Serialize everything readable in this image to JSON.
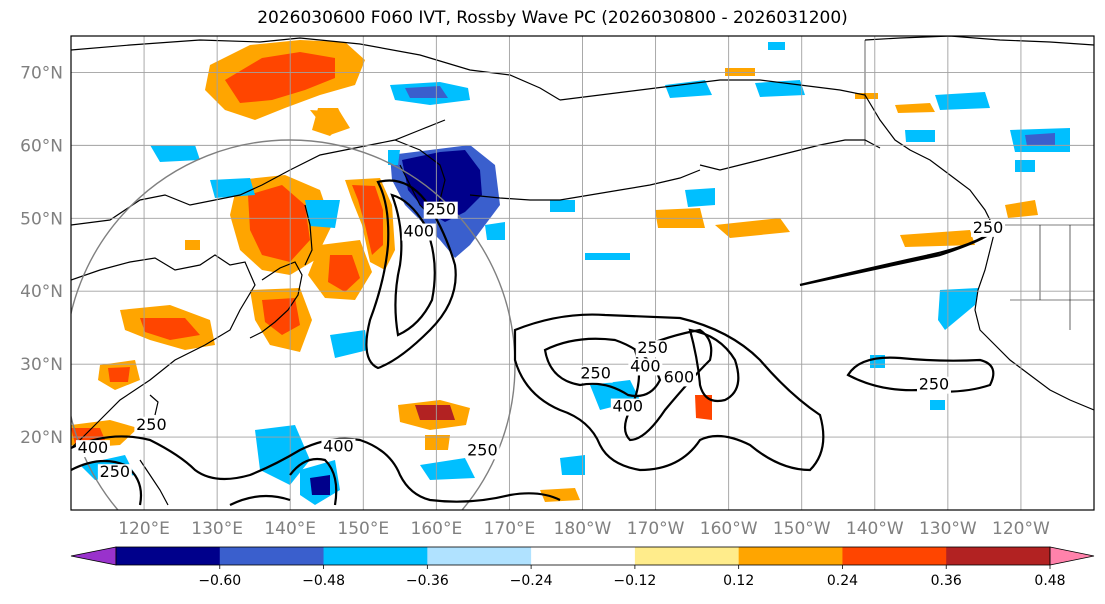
{
  "title": "2026030600 F060 IVT, Rossby Wave PC (2026030800 - 2026031200)",
  "map": {
    "projection": "cylindrical",
    "lon_range": [
      110,
      250
    ],
    "lat_range": [
      10,
      75
    ],
    "lat_labels": [
      "20°N",
      "30°N",
      "40°N",
      "50°N",
      "60°N",
      "70°N"
    ],
    "lat_values": [
      20,
      30,
      40,
      50,
      60,
      70
    ],
    "lon_labels": [
      "120°E",
      "130°E",
      "140°E",
      "150°E",
      "160°E",
      "170°E",
      "180°W",
      "170°W",
      "160°W",
      "150°W",
      "140°W",
      "130°W",
      "120°W"
    ],
    "lon_values": [
      120,
      130,
      140,
      150,
      160,
      170,
      180,
      190,
      200,
      210,
      220,
      230,
      240
    ],
    "ivt_contour_levels": [
      250,
      400,
      600
    ],
    "contour_labels": [
      {
        "text": "250",
        "lon": 166.3,
        "lat": 17.5
      },
      {
        "text": "400",
        "lon": 157.6,
        "lat": 47.5
      },
      {
        "text": "250",
        "lon": 160.6,
        "lat": 50.5
      },
      {
        "text": "250",
        "lon": 189.6,
        "lat": 31.5
      },
      {
        "text": "250",
        "lon": 181.8,
        "lat": 28.0
      },
      {
        "text": "400",
        "lon": 188.6,
        "lat": 29.0
      },
      {
        "text": "600",
        "lon": 193.2,
        "lat": 27.5
      },
      {
        "text": "400",
        "lon": 186.2,
        "lat": 23.5
      },
      {
        "text": "250",
        "lon": 235.5,
        "lat": 48.0
      },
      {
        "text": "250",
        "lon": 228.1,
        "lat": 26.5
      },
      {
        "text": "400",
        "lon": 113.0,
        "lat": 17.8
      },
      {
        "text": "250",
        "lon": 116.0,
        "lat": 14.5
      },
      {
        "text": "250",
        "lon": 121.0,
        "lat": 21.0
      },
      {
        "text": "400",
        "lon": 146.6,
        "lat": 18.0
      }
    ]
  },
  "colorbar": {
    "tick_labels": [
      "−0.60",
      "−0.48",
      "−0.36",
      "−0.24",
      "−0.12",
      "0.12",
      "0.24",
      "0.36",
      "0.48",
      "0.60"
    ],
    "tick_values": [
      -0.6,
      -0.48,
      -0.36,
      -0.24,
      -0.12,
      0.12,
      0.24,
      0.36,
      0.48,
      0.6
    ],
    "colors": [
      "#9932cc",
      "#00008b",
      "#3a5fcd",
      "#00bfff",
      "#b0e2ff",
      "#ffffff",
      "#ffec8b",
      "#ffa500",
      "#ff4500",
      "#b22222",
      "#ff82ab"
    ]
  }
}
